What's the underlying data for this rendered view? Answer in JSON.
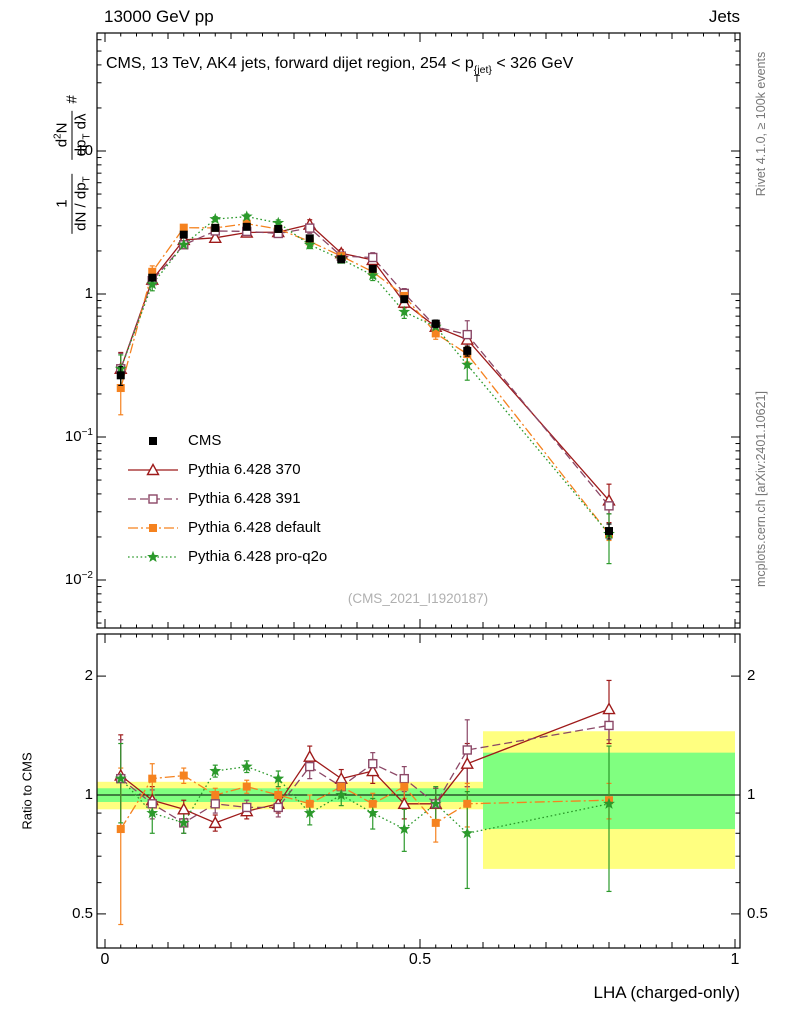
{
  "header": {
    "left": "13000 GeV pp",
    "right": "Jets"
  },
  "title": {
    "pre": "CMS, 13 TeV, AK4 jets, forward dijet region, 254 < ",
    "p": "p",
    "p_sup": "{jet}",
    "p_sub": "T",
    "post": " < 326 GeV"
  },
  "ylabel": {
    "hash": "#",
    "f1_num": "1",
    "f1_den_a": "dN / dp",
    "f1_den_sub": "T",
    "f2_num_a": "d",
    "f2_num_sup": "2",
    "f2_num_b": "N",
    "f2_den_a": "dp",
    "f2_den_sub": "T",
    "f2_den_b": " dλ"
  },
  "ratio_ylabel": "Ratio to CMS",
  "xlabel": "LHA (charged-only)",
  "watermark": "(CMS_2021_I1920187)",
  "side_notes": {
    "top": "Rivet 4.1.0, ≥ 100k events",
    "bottom": "mcplots.cern.ch [arXiv:2401.10621]"
  },
  "axes": {
    "x_ticks": [
      "0",
      "0.5",
      "1"
    ],
    "y_ticks_main": [
      {
        "base": "10",
        "exp": ""
      },
      {
        "base": "1",
        "exp": ""
      },
      {
        "base": "10",
        "exp": "−1"
      },
      {
        "base": "10",
        "exp": "−2"
      }
    ],
    "y_ticks_ratio": [
      "2",
      "1",
      "0.5"
    ]
  },
  "chart_data": {
    "type": "line",
    "title": "CMS, 13 TeV, AK4 jets, forward dijet region, 254 < pT{jet} < 326 GeV",
    "xlabel": "LHA (charged-only)",
    "ylabel": "1/(dN/dpT) d²N/(dpT dλ)",
    "ratio_label": "Ratio to CMS",
    "xlim": [
      0,
      1
    ],
    "main_ylog": true,
    "main_ylim": [
      0.0046,
      67
    ],
    "ratio_ylog": true,
    "ratio_ylim": [
      0.41,
      2.56
    ],
    "legend_position": "inside-left",
    "x": [
      0.025,
      0.075,
      0.125,
      0.175,
      0.225,
      0.275,
      0.325,
      0.375,
      0.425,
      0.475,
      0.525,
      0.575,
      0.8
    ],
    "bin_edges": [
      0,
      0.05,
      0.1,
      0.15,
      0.2,
      0.25,
      0.3,
      0.35,
      0.4,
      0.45,
      0.5,
      0.55,
      0.6,
      1.0
    ],
    "series": [
      {
        "label": "CMS",
        "color": "#000000",
        "marker": "square-filled",
        "line": "none",
        "values": [
          0.27,
          1.3,
          2.6,
          2.9,
          2.95,
          2.85,
          2.45,
          1.75,
          1.5,
          0.92,
          0.62,
          0.4,
          0.022
        ],
        "rel_err": [
          0.15,
          0.05,
          0.04,
          0.03,
          0.03,
          0.03,
          0.04,
          0.04,
          0.05,
          0.05,
          0.06,
          0.08,
          0.12
        ]
      },
      {
        "label": "Pythia 6.428 370",
        "color": "#9e1a1a",
        "marker": "triangle-open",
        "line": "solid",
        "values": [
          0.3,
          1.26,
          2.39,
          2.47,
          2.69,
          2.71,
          3.06,
          1.93,
          1.73,
          0.87,
          0.59,
          0.48,
          0.036
        ],
        "ratio": [
          1.12,
          0.97,
          0.92,
          0.85,
          0.91,
          0.95,
          1.25,
          1.1,
          1.15,
          0.95,
          0.95,
          1.2,
          1.65
        ],
        "rel_err": [
          0.3,
          0.08,
          0.05,
          0.04,
          0.04,
          0.05,
          0.08,
          0.06,
          0.08,
          0.08,
          0.09,
          0.15,
          0.3
        ]
      },
      {
        "label": "Pythia 6.428 391",
        "color": "#8b4766",
        "marker": "square-open",
        "line": "dashed",
        "values": [
          0.3,
          1.24,
          2.21,
          2.76,
          2.74,
          2.65,
          2.89,
          1.84,
          1.8,
          1.01,
          0.59,
          0.52,
          0.033
        ],
        "ratio": [
          1.1,
          0.95,
          0.85,
          0.95,
          0.93,
          0.93,
          1.18,
          1.05,
          1.2,
          1.1,
          0.95,
          1.3,
          1.5
        ],
        "rel_err": [
          0.28,
          0.08,
          0.05,
          0.05,
          0.04,
          0.05,
          0.08,
          0.06,
          0.08,
          0.08,
          0.09,
          0.25,
          0.12
        ]
      },
      {
        "label": "Pythia 6.428 default",
        "color": "#f5821f",
        "marker": "square-filled",
        "line": "dashdot",
        "values": [
          0.22,
          1.43,
          2.91,
          2.9,
          3.1,
          2.85,
          2.33,
          1.84,
          1.43,
          0.97,
          0.53,
          0.38,
          0.021
        ],
        "ratio": [
          0.82,
          1.1,
          1.12,
          1.0,
          1.05,
          1.0,
          0.95,
          1.05,
          0.95,
          1.05,
          0.85,
          0.95,
          0.97
        ],
        "rel_err": [
          0.35,
          0.1,
          0.05,
          0.04,
          0.04,
          0.04,
          0.05,
          0.05,
          0.06,
          0.07,
          0.09,
          0.12,
          0.1
        ]
      },
      {
        "label": "Pythia 6.428 pro-q2o",
        "color": "#2b992b",
        "marker": "star",
        "line": "dotted",
        "values": [
          0.3,
          1.17,
          2.21,
          3.34,
          3.48,
          3.14,
          2.21,
          1.75,
          1.35,
          0.75,
          0.59,
          0.32,
          0.021
        ],
        "ratio": [
          1.1,
          0.9,
          0.85,
          1.15,
          1.18,
          1.1,
          0.9,
          1.0,
          0.9,
          0.82,
          0.95,
          0.8,
          0.95
        ],
        "rel_err": [
          0.25,
          0.1,
          0.05,
          0.04,
          0.04,
          0.05,
          0.06,
          0.06,
          0.08,
          0.1,
          0.1,
          0.22,
          0.38
        ]
      }
    ],
    "bands": [
      {
        "x0": 0.0,
        "x1": 0.6,
        "yellow": [
          0.92,
          1.08
        ],
        "green": [
          0.96,
          1.04
        ]
      },
      {
        "x0": 0.6,
        "x1": 1.0,
        "yellow": [
          0.65,
          1.45
        ],
        "green": [
          0.82,
          1.28
        ]
      }
    ],
    "band_colors": {
      "yellow": "#ffff80",
      "green": "#80ff80"
    }
  }
}
